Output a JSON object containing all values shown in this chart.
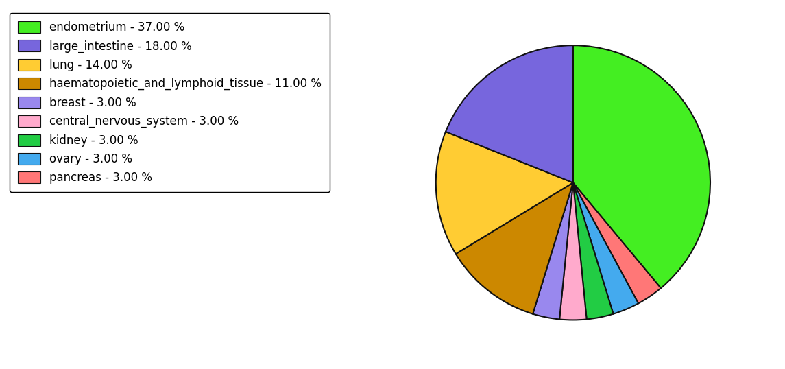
{
  "labels": [
    "endometrium",
    "pancreas",
    "ovary",
    "kidney",
    "central_nervous_system",
    "breast",
    "haematopoietic_and_lymphoid_tissue",
    "lung",
    "large_intestine"
  ],
  "values": [
    37,
    3,
    3,
    3,
    3,
    3,
    11,
    14,
    18
  ],
  "colors": [
    "#44ee22",
    "#ff7777",
    "#44aaee",
    "#22cc44",
    "#ffaacc",
    "#9988ee",
    "#cc8800",
    "#ffcc33",
    "#7766dd"
  ],
  "legend_labels": [
    "endometrium - 37.00 %",
    "large_intestine - 18.00 %",
    "lung - 14.00 %",
    "haematopoietic_and_lymphoid_tissue - 11.00 %",
    "breast - 3.00 %",
    "central_nervous_system - 3.00 %",
    "kidney - 3.00 %",
    "ovary - 3.00 %",
    "pancreas - 3.00 %"
  ],
  "legend_colors": [
    "#44ee22",
    "#7766dd",
    "#ffcc33",
    "#cc8800",
    "#9988ee",
    "#ffaacc",
    "#22cc44",
    "#44aaee",
    "#ff7777"
  ],
  "figsize": [
    11.45,
    5.38
  ],
  "dpi": 100,
  "startangle": 90,
  "edgecolor": "#111111",
  "linewidth": 1.5,
  "legend_fontsize": 12
}
